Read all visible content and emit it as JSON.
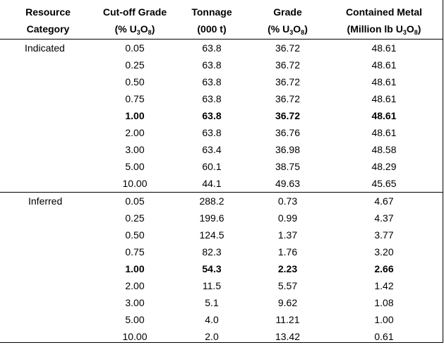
{
  "headers": {
    "category": [
      "Resource",
      "Category"
    ],
    "cutoff": [
      "Cut-off Grade",
      "(% U",
      "3",
      "O",
      "8",
      ")"
    ],
    "tonnage": [
      "Tonnage",
      "(000 t)"
    ],
    "grade": [
      "Grade",
      "(% U",
      "3",
      "O",
      "8",
      ")"
    ],
    "metal": [
      "Contained Metal",
      "(Million lb U",
      "3",
      "O",
      "8",
      ")"
    ]
  },
  "groups": [
    {
      "category": "Indicated",
      "rows": [
        {
          "cutoff": "0.05",
          "tonnage": "63.8",
          "grade": "36.72",
          "metal": "48.61",
          "bold": false
        },
        {
          "cutoff": "0.25",
          "tonnage": "63.8",
          "grade": "36.72",
          "metal": "48.61",
          "bold": false
        },
        {
          "cutoff": "0.50",
          "tonnage": "63.8",
          "grade": "36.72",
          "metal": "48.61",
          "bold": false
        },
        {
          "cutoff": "0.75",
          "tonnage": "63.8",
          "grade": "36.72",
          "metal": "48.61",
          "bold": false
        },
        {
          "cutoff": "1.00",
          "tonnage": "63.8",
          "grade": "36.72",
          "metal": "48.61",
          "bold": true
        },
        {
          "cutoff": "2.00",
          "tonnage": "63.8",
          "grade": "36.76",
          "metal": "48.61",
          "bold": false
        },
        {
          "cutoff": "3.00",
          "tonnage": "63.4",
          "grade": "36.98",
          "metal": "48.58",
          "bold": false
        },
        {
          "cutoff": "5.00",
          "tonnage": "60.1",
          "grade": "38.75",
          "metal": "48.29",
          "bold": false
        },
        {
          "cutoff": "10.00",
          "tonnage": "44.1",
          "grade": "49.63",
          "metal": "45.65",
          "bold": false
        }
      ]
    },
    {
      "category": "Inferred",
      "rows": [
        {
          "cutoff": "0.05",
          "tonnage": "288.2",
          "grade": "0.73",
          "metal": "4.67",
          "bold": false
        },
        {
          "cutoff": "0.25",
          "tonnage": "199.6",
          "grade": "0.99",
          "metal": "4.37",
          "bold": false
        },
        {
          "cutoff": "0.50",
          "tonnage": "124.5",
          "grade": "1.37",
          "metal": "3.77",
          "bold": false
        },
        {
          "cutoff": "0.75",
          "tonnage": "82.3",
          "grade": "1.76",
          "metal": "3.20",
          "bold": false
        },
        {
          "cutoff": "1.00",
          "tonnage": "54.3",
          "grade": "2.23",
          "metal": "2.66",
          "bold": true
        },
        {
          "cutoff": "2.00",
          "tonnage": "11.5",
          "grade": "5.57",
          "metal": "1.42",
          "bold": false
        },
        {
          "cutoff": "3.00",
          "tonnage": "5.1",
          "grade": "9.62",
          "metal": "1.08",
          "bold": false
        },
        {
          "cutoff": "5.00",
          "tonnage": "4.0",
          "grade": "11.21",
          "metal": "1.00",
          "bold": false
        },
        {
          "cutoff": "10.00",
          "tonnage": "2.0",
          "grade": "13.42",
          "metal": "0.61",
          "bold": false
        }
      ]
    }
  ]
}
